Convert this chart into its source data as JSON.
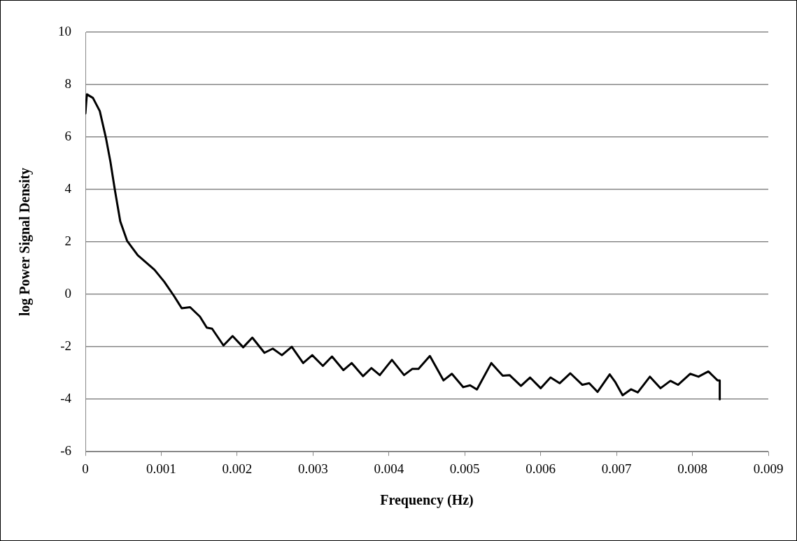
{
  "chart_data": {
    "type": "line",
    "xlabel": "Frequency (Hz)",
    "ylabel": "log Power Signal Density",
    "xlim": [
      0,
      0.009
    ],
    "xticks": [
      0,
      0.001,
      0.002,
      0.003,
      0.004,
      0.005,
      0.006,
      0.007,
      0.008,
      0.009
    ],
    "ylim": [
      -6,
      10
    ],
    "yticks": [
      -6,
      -4,
      -2,
      0,
      2,
      4,
      6,
      8,
      10
    ],
    "grid": "y",
    "legend": false,
    "marker": "none",
    "line_style": "solid",
    "series": [
      {
        "color": "#000000",
        "x": [
          0,
          2e-05,
          0.0001,
          0.00019,
          0.00027,
          0.00033,
          0.00039,
          0.00046,
          0.00055,
          0.00069,
          0.00091,
          0.00104,
          0.00117,
          0.00127,
          0.00138,
          0.00151,
          0.0016,
          0.00167,
          0.00182,
          0.00194,
          0.00208,
          0.0022,
          0.00236,
          0.00247,
          0.00259,
          0.00272,
          0.00287,
          0.00299,
          0.00313,
          0.00325,
          0.0034,
          0.00351,
          0.00366,
          0.00377,
          0.00388,
          0.00404,
          0.0042,
          0.00431,
          0.00439,
          0.00454,
          0.00472,
          0.00483,
          0.00498,
          0.00507,
          0.00516,
          0.00535,
          0.0055,
          0.00559,
          0.00574,
          0.00586,
          0.006,
          0.00613,
          0.00625,
          0.00639,
          0.00655,
          0.00664,
          0.00675,
          0.00691,
          0.00698,
          0.00708,
          0.00719,
          0.00728,
          0.00744,
          0.00758,
          0.00771,
          0.00781,
          0.00797,
          0.00808,
          0.00821,
          0.00833,
          0.00836,
          0.00836
        ],
        "values": [
          6.9,
          7.63,
          7.49,
          6.99,
          5.98,
          5.06,
          3.96,
          2.78,
          2.04,
          1.49,
          0.94,
          0.48,
          -0.07,
          -0.53,
          -0.49,
          -0.85,
          -1.27,
          -1.31,
          -1.95,
          -1.59,
          -2.02,
          -1.65,
          -2.23,
          -2.07,
          -2.32,
          -2.0,
          -2.62,
          -2.32,
          -2.73,
          -2.37,
          -2.89,
          -2.62,
          -3.12,
          -2.81,
          -3.08,
          -2.5,
          -3.08,
          -2.84,
          -2.84,
          -2.35,
          -3.28,
          -3.03,
          -3.54,
          -3.47,
          -3.63,
          -2.62,
          -3.1,
          -3.08,
          -3.49,
          -3.17,
          -3.58,
          -3.17,
          -3.39,
          -3.01,
          -3.45,
          -3.39,
          -3.72,
          -3.05,
          -3.33,
          -3.85,
          -3.62,
          -3.74,
          -3.14,
          -3.58,
          -3.3,
          -3.45,
          -3.03,
          -3.14,
          -2.94,
          -3.28,
          -3.28,
          -4.0
        ]
      }
    ]
  }
}
